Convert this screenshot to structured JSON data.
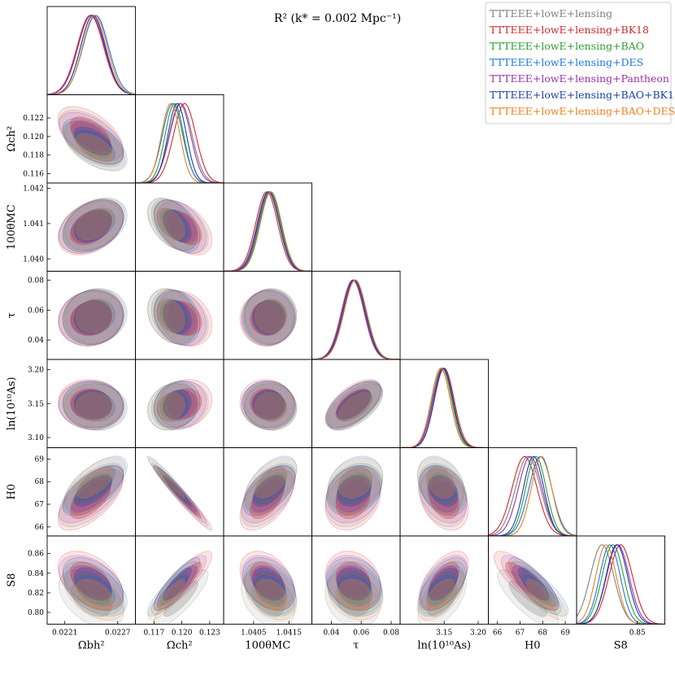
{
  "chart_data": {
    "type": "triangle-corner",
    "title": "R² (k* = 0.002 Mpc⁻¹)",
    "parameters": [
      {
        "label": "Ωbh²",
        "name_tex": "Omega_b h^2",
        "range": [
          0.0219,
          0.0229
        ],
        "ticks": [
          0.0221,
          0.0227
        ],
        "tick_labels": [
          "0.0221",
          "0.0227"
        ]
      },
      {
        "label": "Ωch²",
        "name_tex": "Omega_c h^2",
        "range": [
          0.115,
          0.1245
        ],
        "ticks": [
          0.116,
          0.118,
          0.12,
          0.122
        ],
        "tick_labels": [
          "0.116",
          "0.118",
          "0.120",
          "0.122"
        ],
        "x_ticks": [
          0.117,
          0.12,
          0.123
        ],
        "x_tick_labels": [
          "0.117",
          "0.120",
          "0.123"
        ]
      },
      {
        "label": "100θMC",
        "name_tex": "100 theta_MC",
        "range": [
          1.03965,
          1.04215
        ],
        "ticks": [
          1.04,
          1.041,
          1.042
        ],
        "tick_labels": [
          "1.040",
          "1.041",
          "1.042"
        ],
        "x_ticks": [
          1.0405,
          1.0415
        ],
        "x_tick_labels": [
          "1.0405",
          "1.0415"
        ]
      },
      {
        "label": "τ",
        "name_tex": "tau",
        "range": [
          0.027,
          0.086
        ],
        "ticks": [
          0.04,
          0.06,
          0.08
        ],
        "tick_labels": [
          "0.04",
          "0.06",
          "0.08"
        ]
      },
      {
        "label": "ln(10¹⁰As)",
        "name_tex": "ln(10^10 A_s)",
        "range": [
          3.085,
          3.215
        ],
        "ticks": [
          3.1,
          3.15,
          3.2
        ],
        "tick_labels": [
          "3.10",
          "3.15",
          "3.20"
        ],
        "x_ticks": [
          3.15,
          3.2
        ],
        "x_tick_labels": [
          "3.15",
          "3.20"
        ]
      },
      {
        "label": "H0",
        "name_tex": "H_0",
        "range": [
          65.6,
          69.5
        ],
        "ticks": [
          66,
          67,
          68,
          69
        ],
        "tick_labels": [
          "66",
          "67",
          "68",
          "69"
        ]
      },
      {
        "label": "S8",
        "name_tex": "S_8",
        "range": [
          0.788,
          0.878
        ],
        "ticks": [
          0.8,
          0.82,
          0.84,
          0.86
        ],
        "tick_labels": [
          "0.80",
          "0.82",
          "0.84",
          "0.86"
        ],
        "x_ticks": [
          0.85
        ],
        "x_tick_labels": [
          "0.85"
        ]
      }
    ],
    "series": [
      {
        "name": "TTTEEE+lowE+lensing",
        "color": "#808080",
        "means": [
          0.0224,
          0.1199,
          1.04091,
          0.0543,
          3.147,
          67.35,
          0.814
        ],
        "sigmas": [
          0.00015,
          0.0012,
          0.00031,
          0.0075,
          0.0145,
          0.55,
          0.012
        ]
      },
      {
        "name": "TTTEEE+lowE+lensing+BK18",
        "color": "#d62728",
        "means": [
          0.02239,
          0.1203,
          1.04087,
          0.0545,
          3.15,
          67.2,
          0.833
        ],
        "sigmas": [
          0.00015,
          0.0012,
          0.00031,
          0.0075,
          0.0145,
          0.55,
          0.012
        ]
      },
      {
        "name": "TTTEEE+lowE+lensing+BAO",
        "color": "#2ca02c",
        "means": [
          0.02242,
          0.1192,
          1.04096,
          0.0555,
          3.147,
          67.7,
          0.825
        ],
        "sigmas": [
          0.00014,
          0.001,
          0.0003,
          0.0075,
          0.014,
          0.45,
          0.011
        ]
      },
      {
        "name": "TTTEEE+lowE+lensing+DES",
        "color": "#1f77e8",
        "means": [
          0.02245,
          0.119,
          1.04098,
          0.056,
          3.145,
          67.9,
          0.822
        ],
        "sigmas": [
          0.000145,
          0.0011,
          0.0003,
          0.0075,
          0.014,
          0.5,
          0.0105
        ]
      },
      {
        "name": "TTTEEE+lowE+lensing+Pantheon",
        "color": "#9b30b0",
        "means": [
          0.0224,
          0.1198,
          1.04092,
          0.0547,
          3.148,
          67.45,
          0.83
        ],
        "sigmas": [
          0.00015,
          0.00115,
          0.00031,
          0.0075,
          0.0145,
          0.52,
          0.0115
        ]
      },
      {
        "name": "TTTEEE+lowE+lensing+BAO+BK18",
        "color": "#1a3ea8",
        "means": [
          0.02242,
          0.1195,
          1.04093,
          0.0553,
          3.149,
          67.6,
          0.829
        ],
        "sigmas": [
          0.00014,
          0.001,
          0.0003,
          0.0075,
          0.014,
          0.45,
          0.011
        ]
      },
      {
        "name": "TTTEEE+lowE+lensing+BAO+DES",
        "color": "#f08020",
        "means": [
          0.02244,
          0.1188,
          1.04099,
          0.056,
          3.145,
          67.95,
          0.818
        ],
        "sigmas": [
          0.00014,
          0.001,
          0.0003,
          0.0075,
          0.014,
          0.45,
          0.0105
        ]
      }
    ],
    "correlations": [
      {
        "x": 0,
        "y": 1,
        "rho": -0.55
      },
      {
        "x": 0,
        "y": 2,
        "rho": 0.35
      },
      {
        "x": 0,
        "y": 3,
        "rho": 0.1
      },
      {
        "x": 0,
        "y": 4,
        "rho": -0.05
      },
      {
        "x": 0,
        "y": 5,
        "rho": 0.65
      },
      {
        "x": 0,
        "y": 6,
        "rho": -0.45
      },
      {
        "x": 1,
        "y": 2,
        "rho": -0.45
      },
      {
        "x": 1,
        "y": 3,
        "rho": -0.25
      },
      {
        "x": 1,
        "y": 4,
        "rho": 0.15
      },
      {
        "x": 1,
        "y": 5,
        "rho": -0.97
      },
      {
        "x": 1,
        "y": 6,
        "rho": 0.85
      },
      {
        "x": 2,
        "y": 3,
        "rho": 0.02
      },
      {
        "x": 2,
        "y": 4,
        "rho": -0.05
      },
      {
        "x": 2,
        "y": 5,
        "rho": 0.55
      },
      {
        "x": 2,
        "y": 6,
        "rho": -0.35
      },
      {
        "x": 3,
        "y": 4,
        "rho": 0.6
      },
      {
        "x": 3,
        "y": 5,
        "rho": 0.25
      },
      {
        "x": 3,
        "y": 6,
        "rho": -0.2
      },
      {
        "x": 4,
        "y": 5,
        "rho": -0.3
      },
      {
        "x": 4,
        "y": 6,
        "rho": 0.55
      },
      {
        "x": 5,
        "y": 6,
        "rho": -0.8
      }
    ],
    "contour_levels": [
      "68%",
      "95%"
    ],
    "legend_position": "top-right",
    "grid": false
  }
}
